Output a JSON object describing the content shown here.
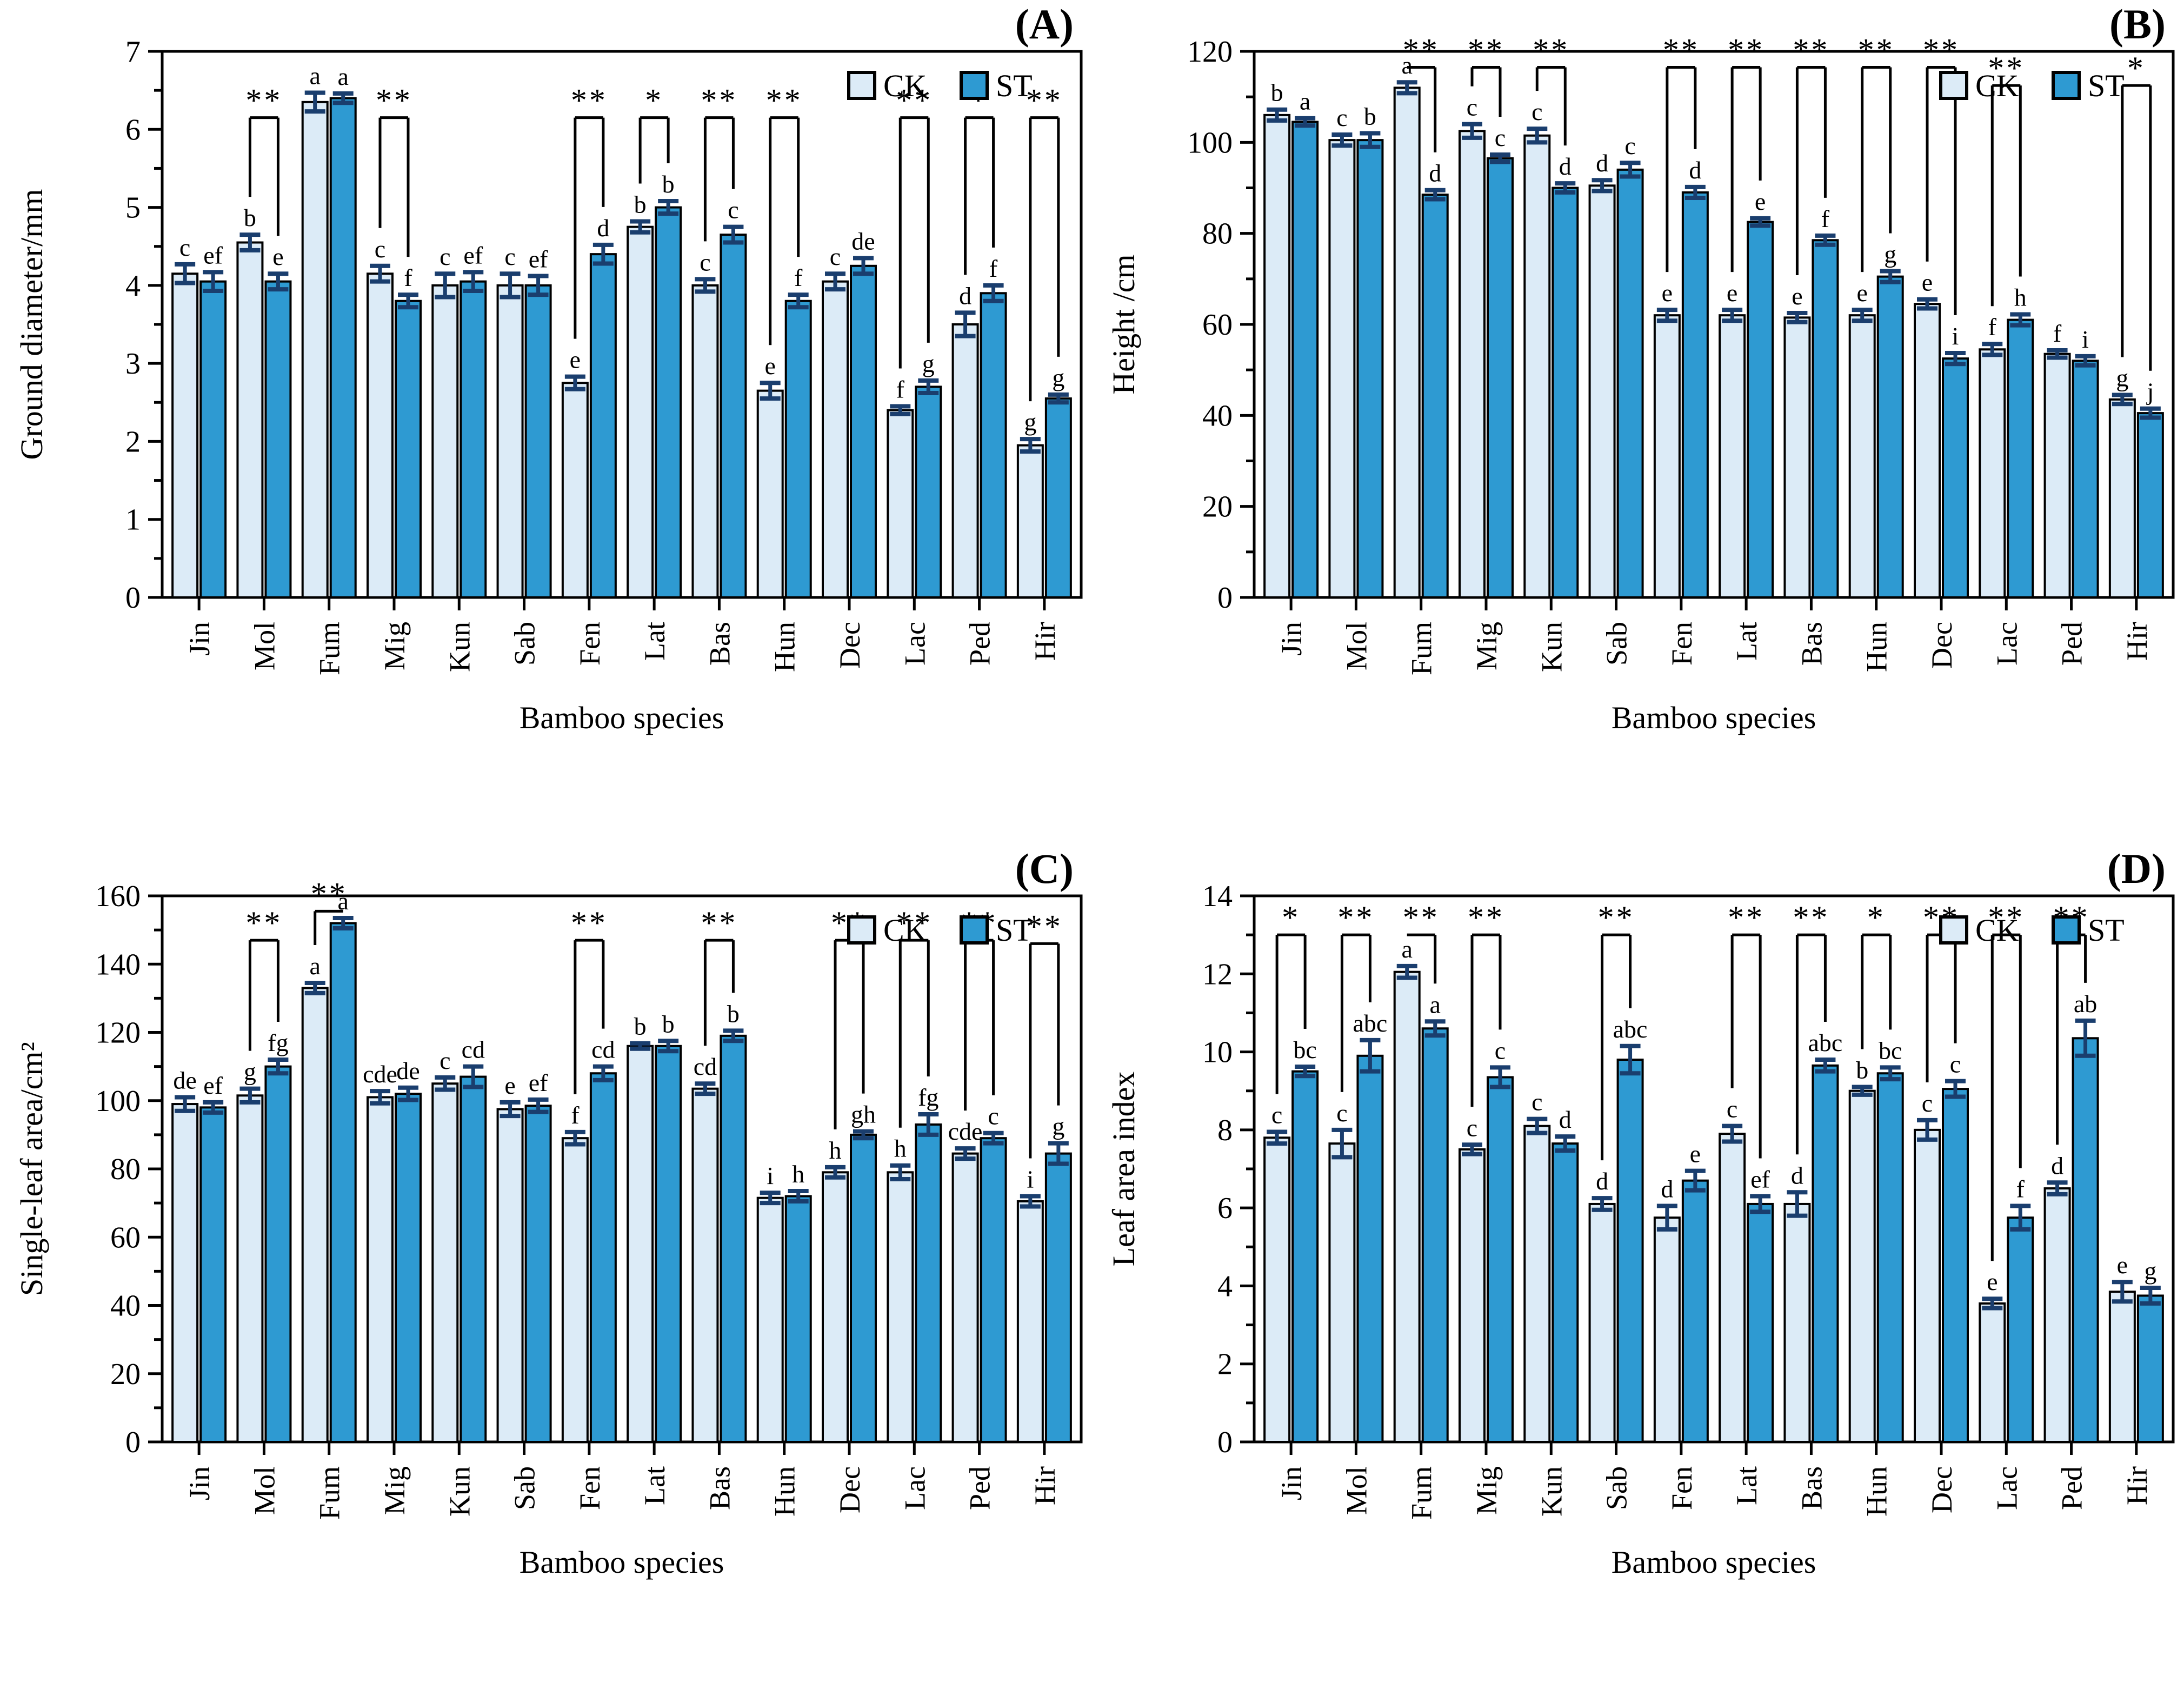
{
  "colors": {
    "ck_fill": "#dcebf7",
    "st_fill": "#2e9ad2",
    "error_bar": "#1a3e6e",
    "axis": "#000000"
  },
  "legend": {
    "ck": "CK",
    "st": "ST"
  },
  "chart_data": [
    {
      "panel": "A",
      "type": "bar",
      "tag": "(A)",
      "ylabel": "Ground diameter/mm",
      "xlabel": "Bamboo species",
      "ylim": [
        0,
        7
      ],
      "yticks": [
        0,
        1,
        2,
        3,
        4,
        5,
        6,
        7
      ],
      "yminor": 0.5,
      "legend_position": "top-right-inside",
      "grid": false,
      "categories": [
        "Jin",
        "Mol",
        "Fum",
        "Mig",
        "Kun",
        "Sab",
        "Fen",
        "Lat",
        "Bas",
        "Hun",
        "Dec",
        "Lac",
        "Ped",
        "Hir"
      ],
      "series": [
        {
          "name": "CK",
          "values": [
            4.15,
            4.55,
            6.35,
            4.15,
            4.0,
            4.0,
            2.75,
            4.75,
            4.0,
            2.65,
            4.05,
            2.4,
            3.5,
            1.95
          ],
          "errors": [
            0.12,
            0.1,
            0.12,
            0.1,
            0.15,
            0.15,
            0.08,
            0.07,
            0.08,
            0.1,
            0.1,
            0.05,
            0.15,
            0.08
          ],
          "letters": [
            "c",
            "b",
            "a",
            "c",
            "c",
            "c",
            "e",
            "b",
            "c",
            "e",
            "c",
            "f",
            "d",
            "g"
          ]
        },
        {
          "name": "ST",
          "values": [
            4.05,
            4.05,
            6.4,
            3.8,
            4.05,
            4.0,
            4.4,
            5.0,
            4.65,
            3.8,
            4.25,
            2.7,
            3.9,
            2.55
          ],
          "errors": [
            0.12,
            0.1,
            0.06,
            0.08,
            0.12,
            0.12,
            0.12,
            0.08,
            0.1,
            0.08,
            0.1,
            0.08,
            0.1,
            0.05
          ],
          "letters": [
            "ef",
            "e",
            "a",
            "f",
            "ef",
            "ef",
            "d",
            "b",
            "c",
            "f",
            "de",
            "g",
            "f",
            "g"
          ]
        }
      ],
      "significance": [
        {
          "index": 1,
          "marker": "**",
          "level": 6.15
        },
        {
          "index": 3,
          "marker": "**",
          "level": 6.15
        },
        {
          "index": 6,
          "marker": "**",
          "level": 6.15
        },
        {
          "index": 7,
          "marker": "*",
          "level": 6.15
        },
        {
          "index": 8,
          "marker": "**",
          "level": 6.15
        },
        {
          "index": 9,
          "marker": "**",
          "level": 6.15
        },
        {
          "index": 11,
          "marker": "**",
          "level": 6.15
        },
        {
          "index": 12,
          "marker": "*",
          "level": 6.15
        },
        {
          "index": 13,
          "marker": "**",
          "level": 6.15
        }
      ]
    },
    {
      "panel": "B",
      "type": "bar",
      "tag": "(B)",
      "ylabel": "Height /cm",
      "xlabel": "Bamboo species",
      "ylim": [
        0,
        120
      ],
      "yticks": [
        0,
        20,
        40,
        60,
        80,
        100,
        120
      ],
      "yminor": 10,
      "legend_position": "top-right-inside",
      "grid": false,
      "categories": [
        "Jin",
        "Mol",
        "Fum",
        "Mig",
        "Kun",
        "Sab",
        "Fen",
        "Lat",
        "Bas",
        "Hun",
        "Dec",
        "Lac",
        "Ped",
        "Hir"
      ],
      "series": [
        {
          "name": "CK",
          "values": [
            106,
            100.5,
            112,
            102.5,
            101.5,
            90.5,
            62,
            62,
            61.5,
            62,
            64.5,
            54.5,
            53.5,
            43.5
          ],
          "errors": [
            1.2,
            1.2,
            1.2,
            1.5,
            1.5,
            1.2,
            1.2,
            1.2,
            1.0,
            1.2,
            1.0,
            1.2,
            0.8,
            1.0
          ],
          "letters": [
            "b",
            "c",
            "a",
            "c",
            "c",
            "d",
            "e",
            "e",
            "e",
            "e",
            "e",
            "f",
            "f",
            "g"
          ]
        },
        {
          "name": "ST",
          "values": [
            104.5,
            100.5,
            88.5,
            96.5,
            90,
            94,
            89,
            82.5,
            78.5,
            70.5,
            52.5,
            61,
            52,
            40.5
          ],
          "errors": [
            0.8,
            1.5,
            1.0,
            0.8,
            1.0,
            1.5,
            1.2,
            0.8,
            1.0,
            1.2,
            1.2,
            1.2,
            1.0,
            1.0
          ],
          "letters": [
            "a",
            "b",
            "d",
            "c",
            "d",
            "c",
            "d",
            "e",
            "f",
            "g",
            "i",
            "h",
            "i",
            "j"
          ]
        }
      ],
      "significance": [
        {
          "index": 2,
          "marker": "**",
          "level": 116.5
        },
        {
          "index": 3,
          "marker": "**",
          "level": 116.5
        },
        {
          "index": 4,
          "marker": "**",
          "level": 116.5
        },
        {
          "index": 6,
          "marker": "**",
          "level": 116.5
        },
        {
          "index": 7,
          "marker": "**",
          "level": 116.5
        },
        {
          "index": 8,
          "marker": "**",
          "level": 116.5
        },
        {
          "index": 9,
          "marker": "**",
          "level": 116.5
        },
        {
          "index": 10,
          "marker": "**",
          "level": 116.5
        },
        {
          "index": 11,
          "marker": "**",
          "level": 112.5
        },
        {
          "index": 13,
          "marker": "*",
          "level": 112.5
        }
      ]
    },
    {
      "panel": "C",
      "type": "bar",
      "tag": "(C)",
      "ylabel": "Single-leaf area/cm²",
      "xlabel": "Bamboo species",
      "ylim": [
        0,
        160
      ],
      "yticks": [
        0,
        20,
        40,
        60,
        80,
        100,
        120,
        140,
        160
      ],
      "yminor": 10,
      "legend_position": "top-right-inside",
      "grid": false,
      "categories": [
        "Jin",
        "Mol",
        "Fum",
        "Mig",
        "Kun",
        "Sab",
        "Fen",
        "Lat",
        "Bas",
        "Hun",
        "Dec",
        "Lac",
        "Ped",
        "Hir"
      ],
      "series": [
        {
          "name": "CK",
          "values": [
            99,
            101.5,
            133,
            101,
            105,
            97.5,
            89,
            116,
            103.5,
            71.5,
            79,
            79,
            84.5,
            70.5
          ],
          "errors": [
            2,
            2,
            1.5,
            1.8,
            1.8,
            2,
            1.8,
            0.8,
            1.5,
            1.5,
            1.5,
            2,
            1.5,
            1.5
          ],
          "letters": [
            "de",
            "g",
            "a",
            "cde",
            "c",
            "e",
            "f",
            "b",
            "cd",
            "i",
            "h",
            "h",
            "cde",
            "i"
          ]
        },
        {
          "name": "ST",
          "values": [
            98,
            110,
            152,
            102,
            107,
            98.5,
            108,
            116,
            119,
            72,
            90,
            93,
            89,
            84.5
          ],
          "errors": [
            1.5,
            2,
            1.5,
            1.8,
            3,
            1.8,
            2,
            1.5,
            1.5,
            1.5,
            1,
            3,
            1.5,
            3
          ],
          "letters": [
            "ef",
            "fg",
            "a",
            "de",
            "cd",
            "ef",
            "cd",
            "b",
            "b",
            "h",
            "gh",
            "fg",
            "c",
            "g"
          ]
        }
      ],
      "significance": [
        {
          "index": 1,
          "marker": "**",
          "level": 147
        },
        {
          "index": 2,
          "marker": "**",
          "level": 155.5
        },
        {
          "index": 6,
          "marker": "**",
          "level": 147
        },
        {
          "index": 8,
          "marker": "**",
          "level": 147
        },
        {
          "index": 10,
          "marker": "**",
          "level": 147
        },
        {
          "index": 11,
          "marker": "**",
          "level": 147
        },
        {
          "index": 12,
          "marker": "**",
          "level": 147
        },
        {
          "index": 13,
          "marker": "**",
          "level": 146
        }
      ]
    },
    {
      "panel": "D",
      "type": "bar",
      "tag": "(D)",
      "ylabel": "Leaf area index",
      "xlabel": "Bamboo species",
      "ylim": [
        0,
        14
      ],
      "yticks": [
        0,
        2,
        4,
        6,
        8,
        10,
        12,
        14
      ],
      "yminor": 1,
      "legend_position": "top-right-inside",
      "grid": false,
      "categories": [
        "Jin",
        "Mol",
        "Fum",
        "Mig",
        "Kun",
        "Sab",
        "Fen",
        "Lat",
        "Bas",
        "Hun",
        "Dec",
        "Lac",
        "Ped",
        "Hir"
      ],
      "series": [
        {
          "name": "CK",
          "values": [
            7.8,
            7.65,
            12.05,
            7.5,
            8.1,
            6.1,
            5.75,
            7.9,
            6.1,
            9.0,
            8.0,
            3.55,
            6.5,
            3.85
          ],
          "errors": [
            0.15,
            0.35,
            0.15,
            0.12,
            0.18,
            0.15,
            0.3,
            0.2,
            0.3,
            0.1,
            0.25,
            0.12,
            0.15,
            0.25
          ],
          "letters": [
            "c",
            "c",
            "a",
            "c",
            "c",
            "d",
            "d",
            "c",
            "d",
            "b",
            "c",
            "e",
            "d",
            "e"
          ]
        },
        {
          "name": "ST",
          "values": [
            9.5,
            9.9,
            10.6,
            9.35,
            7.65,
            9.8,
            6.7,
            6.1,
            9.65,
            9.45,
            9.05,
            5.75,
            10.35,
            3.75
          ],
          "errors": [
            0.12,
            0.4,
            0.18,
            0.25,
            0.18,
            0.35,
            0.25,
            0.2,
            0.15,
            0.15,
            0.2,
            0.3,
            0.45,
            0.2
          ],
          "letters": [
            "bc",
            "abc",
            "a",
            "c",
            "d",
            "abc",
            "e",
            "ef",
            "abc",
            "bc",
            "c",
            "f",
            "ab",
            "g"
          ]
        }
      ],
      "significance": [
        {
          "index": 0,
          "marker": "*",
          "level": 13.0
        },
        {
          "index": 1,
          "marker": "**",
          "level": 13.0
        },
        {
          "index": 2,
          "marker": "**",
          "level": 13.0
        },
        {
          "index": 3,
          "marker": "**",
          "level": 13.0
        },
        {
          "index": 5,
          "marker": "**",
          "level": 13.0
        },
        {
          "index": 7,
          "marker": "**",
          "level": 13.0
        },
        {
          "index": 8,
          "marker": "**",
          "level": 13.0
        },
        {
          "index": 9,
          "marker": "*",
          "level": 13.0
        },
        {
          "index": 10,
          "marker": "**",
          "level": 13.0
        },
        {
          "index": 11,
          "marker": "**",
          "level": 13.0
        },
        {
          "index": 12,
          "marker": "**",
          "level": 13.0
        }
      ]
    }
  ]
}
